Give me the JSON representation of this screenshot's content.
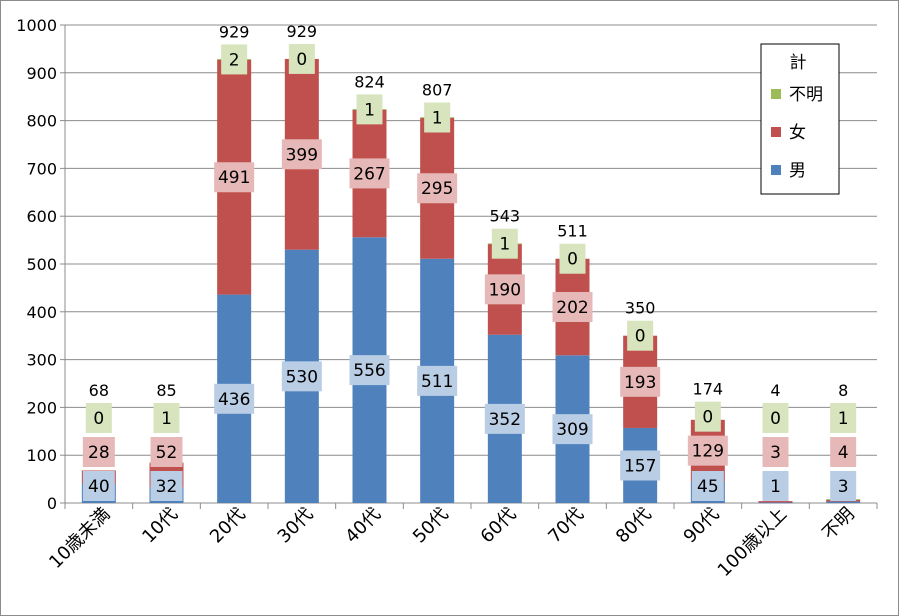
{
  "chart_data": {
    "type": "bar",
    "stacked": true,
    "title": "",
    "xlabel": "",
    "ylabel": "",
    "ylim": [
      0,
      1000
    ],
    "yticks": [
      "0",
      "100",
      "200",
      "300",
      "400",
      "500",
      "600",
      "700",
      "800",
      "900",
      "1000"
    ],
    "grid": true,
    "categories": [
      "10歳未満",
      "10代",
      "20代",
      "30代",
      "40代",
      "50代",
      "60代",
      "70代",
      "80代",
      "90代",
      "100歳以上",
      "不明"
    ],
    "series": [
      {
        "name": "男",
        "color": "#4f81bd",
        "label_bg": "#b9cde5",
        "values": [
          40,
          32,
          436,
          530,
          556,
          511,
          352,
          309,
          157,
          45,
          1,
          3
        ]
      },
      {
        "name": "女",
        "color": "#c0504d",
        "label_bg": "#e6b9b8",
        "values": [
          28,
          52,
          491,
          399,
          267,
          295,
          190,
          202,
          193,
          129,
          3,
          4
        ]
      },
      {
        "name": "不明",
        "color": "#9bbb59",
        "label_bg": "#d7e4bd",
        "values": [
          0,
          1,
          2,
          0,
          1,
          1,
          1,
          0,
          0,
          0,
          0,
          1
        ]
      }
    ],
    "totals": [
      68,
      85,
      929,
      929,
      824,
      807,
      543,
      511,
      350,
      174,
      4,
      8
    ],
    "legend": {
      "placement": "top-right",
      "title": "計",
      "entries": [
        "不明",
        "女",
        "男"
      ]
    }
  }
}
